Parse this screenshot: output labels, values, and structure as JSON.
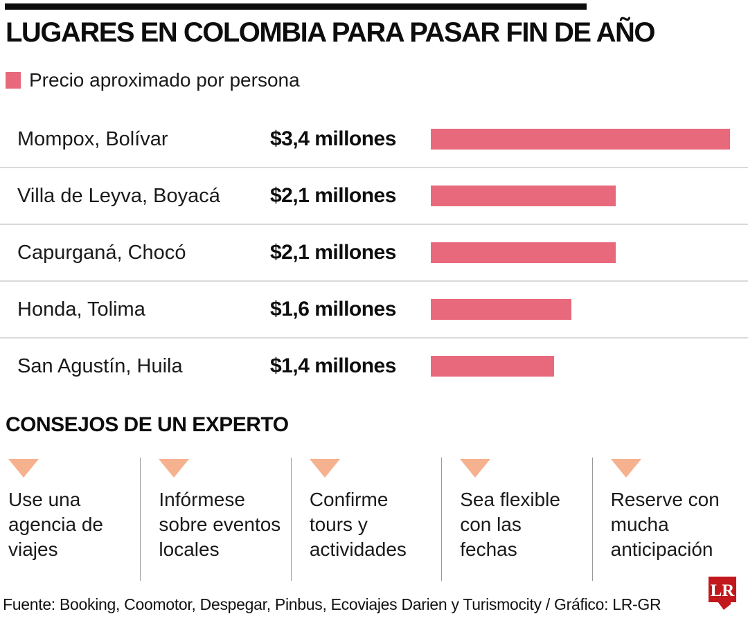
{
  "header": {
    "title": "LUGARES EN COLOMBIA PARA PASAR FIN DE AÑO"
  },
  "legend": {
    "label": "Precio aproximado por persona",
    "swatch_color": "#e8697b"
  },
  "chart_data": {
    "type": "bar",
    "orientation": "horizontal",
    "title": "LUGARES EN COLOMBIA PARA PASAR FIN DE AÑO",
    "legend": [
      "Precio aproximado por persona"
    ],
    "categories": [
      "Mompox, Bolívar",
      "Villa de Leyva, Boyacá",
      "Capurganá, Chocó",
      "Honda, Tolima",
      "San Agustín, Huila"
    ],
    "values": [
      3.4,
      2.1,
      2.1,
      1.6,
      1.4
    ],
    "value_labels": [
      "$3,4 millones",
      "$2,1 millones",
      "$2,1 millones",
      "$1,6 millones",
      "$1,4 millones"
    ],
    "unit": "millones de pesos por persona",
    "xlim": [
      0,
      3.4
    ],
    "grid": false,
    "legend_position": "top-left",
    "bar_color": "#e8697b"
  },
  "tips_section": {
    "title": "CONSEJOS DE UN EXPERTO",
    "marker_color": "#f6b18e",
    "tips": [
      "Use una agencia de viajes",
      "Infórmese sobre eventos locales",
      "Confirme tours y actividades",
      "Sea flexible con las fechas",
      "Reserve con mucha anticipación"
    ]
  },
  "footer": {
    "source": "Fuente: Booking, Coomotor, Despegar, Pinbus, Ecoviajes Darien y Turismocity / Gráfico: LR-GR",
    "logo_text": "LR",
    "logo_color": "#c2171d"
  }
}
